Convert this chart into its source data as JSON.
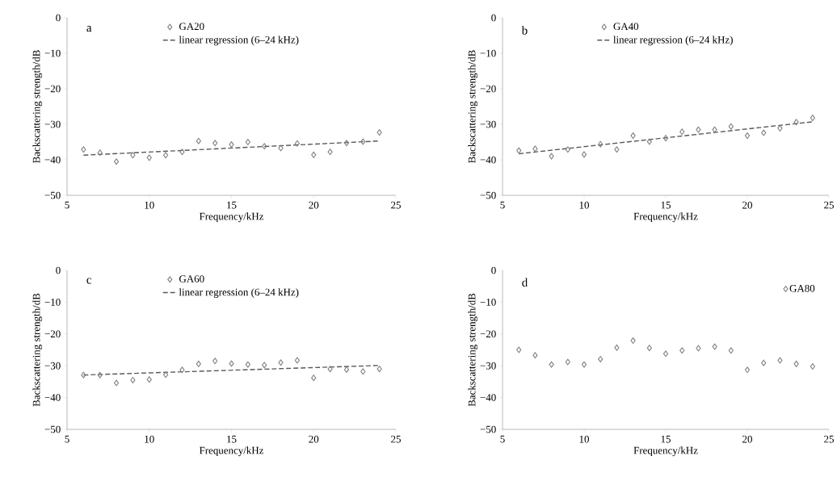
{
  "chart_data": [
    {
      "type": "scatter",
      "title": "a",
      "xlabel": "Frequency/kHz",
      "ylabel": "Backscattering strength/dB",
      "xlim": [
        5,
        25
      ],
      "ylim": [
        -50,
        0
      ],
      "xticks": [
        5,
        10,
        15,
        20,
        25
      ],
      "yticks": [
        {
          "value": -50,
          "label": "−50"
        },
        {
          "value": -40,
          "label": "−40"
        },
        {
          "value": -30,
          "label": "−30"
        },
        {
          "value": -20,
          "label": "−20"
        },
        {
          "value": -10,
          "label": "−10"
        },
        0
      ],
      "legend": "top",
      "grid": false,
      "series": [
        {
          "name": "GA20",
          "marker": "diamond",
          "color": "#808080",
          "x": [
            6,
            7,
            8,
            9,
            10,
            11,
            12,
            13,
            14,
            15,
            16,
            17,
            18,
            19,
            20,
            21,
            22,
            23,
            24
          ],
          "values": [
            -37.1,
            -38.0,
            -40.5,
            -38.7,
            -39.4,
            -38.7,
            -37.8,
            -34.7,
            -35.3,
            -35.7,
            -35.0,
            -36.2,
            -36.7,
            -35.4,
            -38.6,
            -37.8,
            -35.3,
            -34.9,
            -32.3
          ]
        },
        {
          "name": "linear regression (6–24 kHz)",
          "type": "line",
          "marker": "none",
          "line_style": "dashed",
          "color": "#595959",
          "x": [
            6,
            24
          ],
          "values": [
            -38.7,
            -34.7
          ]
        }
      ]
    },
    {
      "type": "scatter",
      "title": "b",
      "xlabel": "Frequency/kHz",
      "ylabel": "Backscattering strength/dB",
      "xlim": [
        5,
        25
      ],
      "ylim": [
        -50,
        0
      ],
      "xticks": [
        5,
        10,
        15,
        20,
        25
      ],
      "yticks": [
        {
          "value": -50,
          "label": "−50"
        },
        {
          "value": -40,
          "label": "−40"
        },
        {
          "value": -30,
          "label": "−30"
        },
        {
          "value": -20,
          "label": "−20"
        },
        {
          "value": -10,
          "label": "−10"
        },
        0
      ],
      "legend": "top",
      "grid": false,
      "series": [
        {
          "name": "GA40",
          "marker": "diamond",
          "color": "#808080",
          "x": [
            6,
            7,
            8,
            9,
            10,
            11,
            12,
            13,
            14,
            15,
            16,
            17,
            18,
            19,
            20,
            21,
            22,
            23,
            24
          ],
          "values": [
            -37.4,
            -36.9,
            -39.0,
            -37.1,
            -38.5,
            -35.6,
            -37.1,
            -33.2,
            -34.9,
            -33.9,
            -32.1,
            -31.5,
            -31.5,
            -30.6,
            -33.2,
            -32.4,
            -31.1,
            -29.4,
            -28.2
          ]
        },
        {
          "name": "linear regression (6–24 kHz)",
          "type": "line",
          "marker": "none",
          "line_style": "dashed",
          "color": "#595959",
          "x": [
            6,
            24
          ],
          "values": [
            -38.3,
            -29.3
          ]
        }
      ]
    },
    {
      "type": "scatter",
      "title": "c",
      "xlabel": "Frequency/kHz",
      "ylabel": "Backscattering strength/dB",
      "xlim": [
        5,
        25
      ],
      "ylim": [
        -50,
        0
      ],
      "xticks": [
        5,
        10,
        15,
        20,
        25
      ],
      "yticks": [
        {
          "value": -50,
          "label": "−50"
        },
        {
          "value": -40,
          "label": "−40"
        },
        {
          "value": -30,
          "label": "−30"
        },
        {
          "value": -20,
          "label": "−20"
        },
        {
          "value": -10,
          "label": "−10"
        },
        0
      ],
      "legend": "top",
      "grid": false,
      "series": [
        {
          "name": "GA60",
          "marker": "diamond",
          "color": "#808080",
          "x": [
            6,
            7,
            8,
            9,
            10,
            11,
            12,
            13,
            14,
            15,
            16,
            17,
            18,
            19,
            20,
            21,
            22,
            23,
            24
          ],
          "values": [
            -32.9,
            -32.9,
            -35.4,
            -34.5,
            -34.3,
            -32.8,
            -31.3,
            -29.4,
            -28.5,
            -29.3,
            -29.6,
            -29.8,
            -29.0,
            -28.3,
            -33.8,
            -31.0,
            -31.2,
            -31.8,
            -31.0
          ]
        },
        {
          "name": "linear regression (6–24 kHz)",
          "type": "line",
          "marker": "none",
          "line_style": "dashed",
          "color": "#595959",
          "x": [
            6,
            24
          ],
          "values": [
            -32.9,
            -29.9
          ]
        }
      ]
    },
    {
      "type": "scatter",
      "title": "d",
      "xlabel": "Frequency/kHz",
      "ylabel": "Backscattering strength/dB",
      "xlim": [
        5,
        25
      ],
      "ylim": [
        -50,
        0
      ],
      "xticks": [
        5,
        10,
        15,
        20,
        25
      ],
      "yticks": [
        {
          "value": -50,
          "label": "−50"
        },
        {
          "value": -40,
          "label": "−40"
        },
        {
          "value": -30,
          "label": "−30"
        },
        {
          "value": -20,
          "label": "−20"
        },
        {
          "value": -10,
          "label": "−10"
        },
        0
      ],
      "legend": "top right",
      "grid": false,
      "series": [
        {
          "name": "GA80",
          "marker": "diamond",
          "color": "#808080",
          "x": [
            6,
            7,
            8,
            9,
            10,
            11,
            12,
            13,
            14,
            15,
            16,
            17,
            18,
            19,
            20,
            21,
            22,
            23,
            24
          ],
          "values": [
            -25.0,
            -26.7,
            -29.6,
            -28.8,
            -29.6,
            -27.9,
            -24.3,
            -22.1,
            -24.4,
            -26.2,
            -25.2,
            -24.5,
            -24.0,
            -25.2,
            -31.3,
            -29.1,
            -28.3,
            -29.4,
            -30.2
          ]
        }
      ]
    }
  ]
}
